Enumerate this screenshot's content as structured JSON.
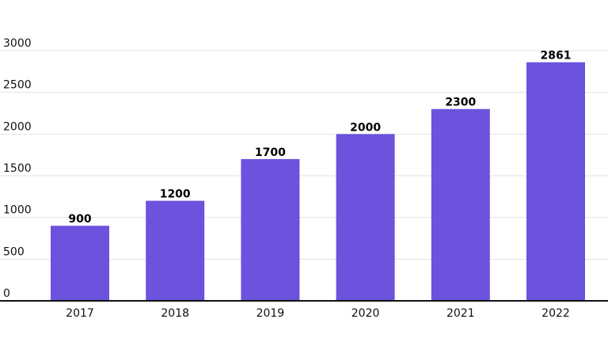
{
  "chart_data": {
    "type": "bar",
    "categories": [
      "2017",
      "2018",
      "2019",
      "2020",
      "2021",
      "2022"
    ],
    "values": [
      900,
      1200,
      1700,
      2000,
      2300,
      2861
    ],
    "data_labels": [
      "900",
      "1200",
      "1700",
      "2000",
      "2300",
      "2861"
    ],
    "yticks": [
      0,
      500,
      1000,
      1500,
      2000,
      2500,
      3000
    ],
    "ylim": [
      0,
      3000
    ],
    "grid": true,
    "legend": "none",
    "colors": {
      "bar": "#6c52dc",
      "gridline": "#e2e2e2",
      "baseline": "#111111"
    }
  }
}
